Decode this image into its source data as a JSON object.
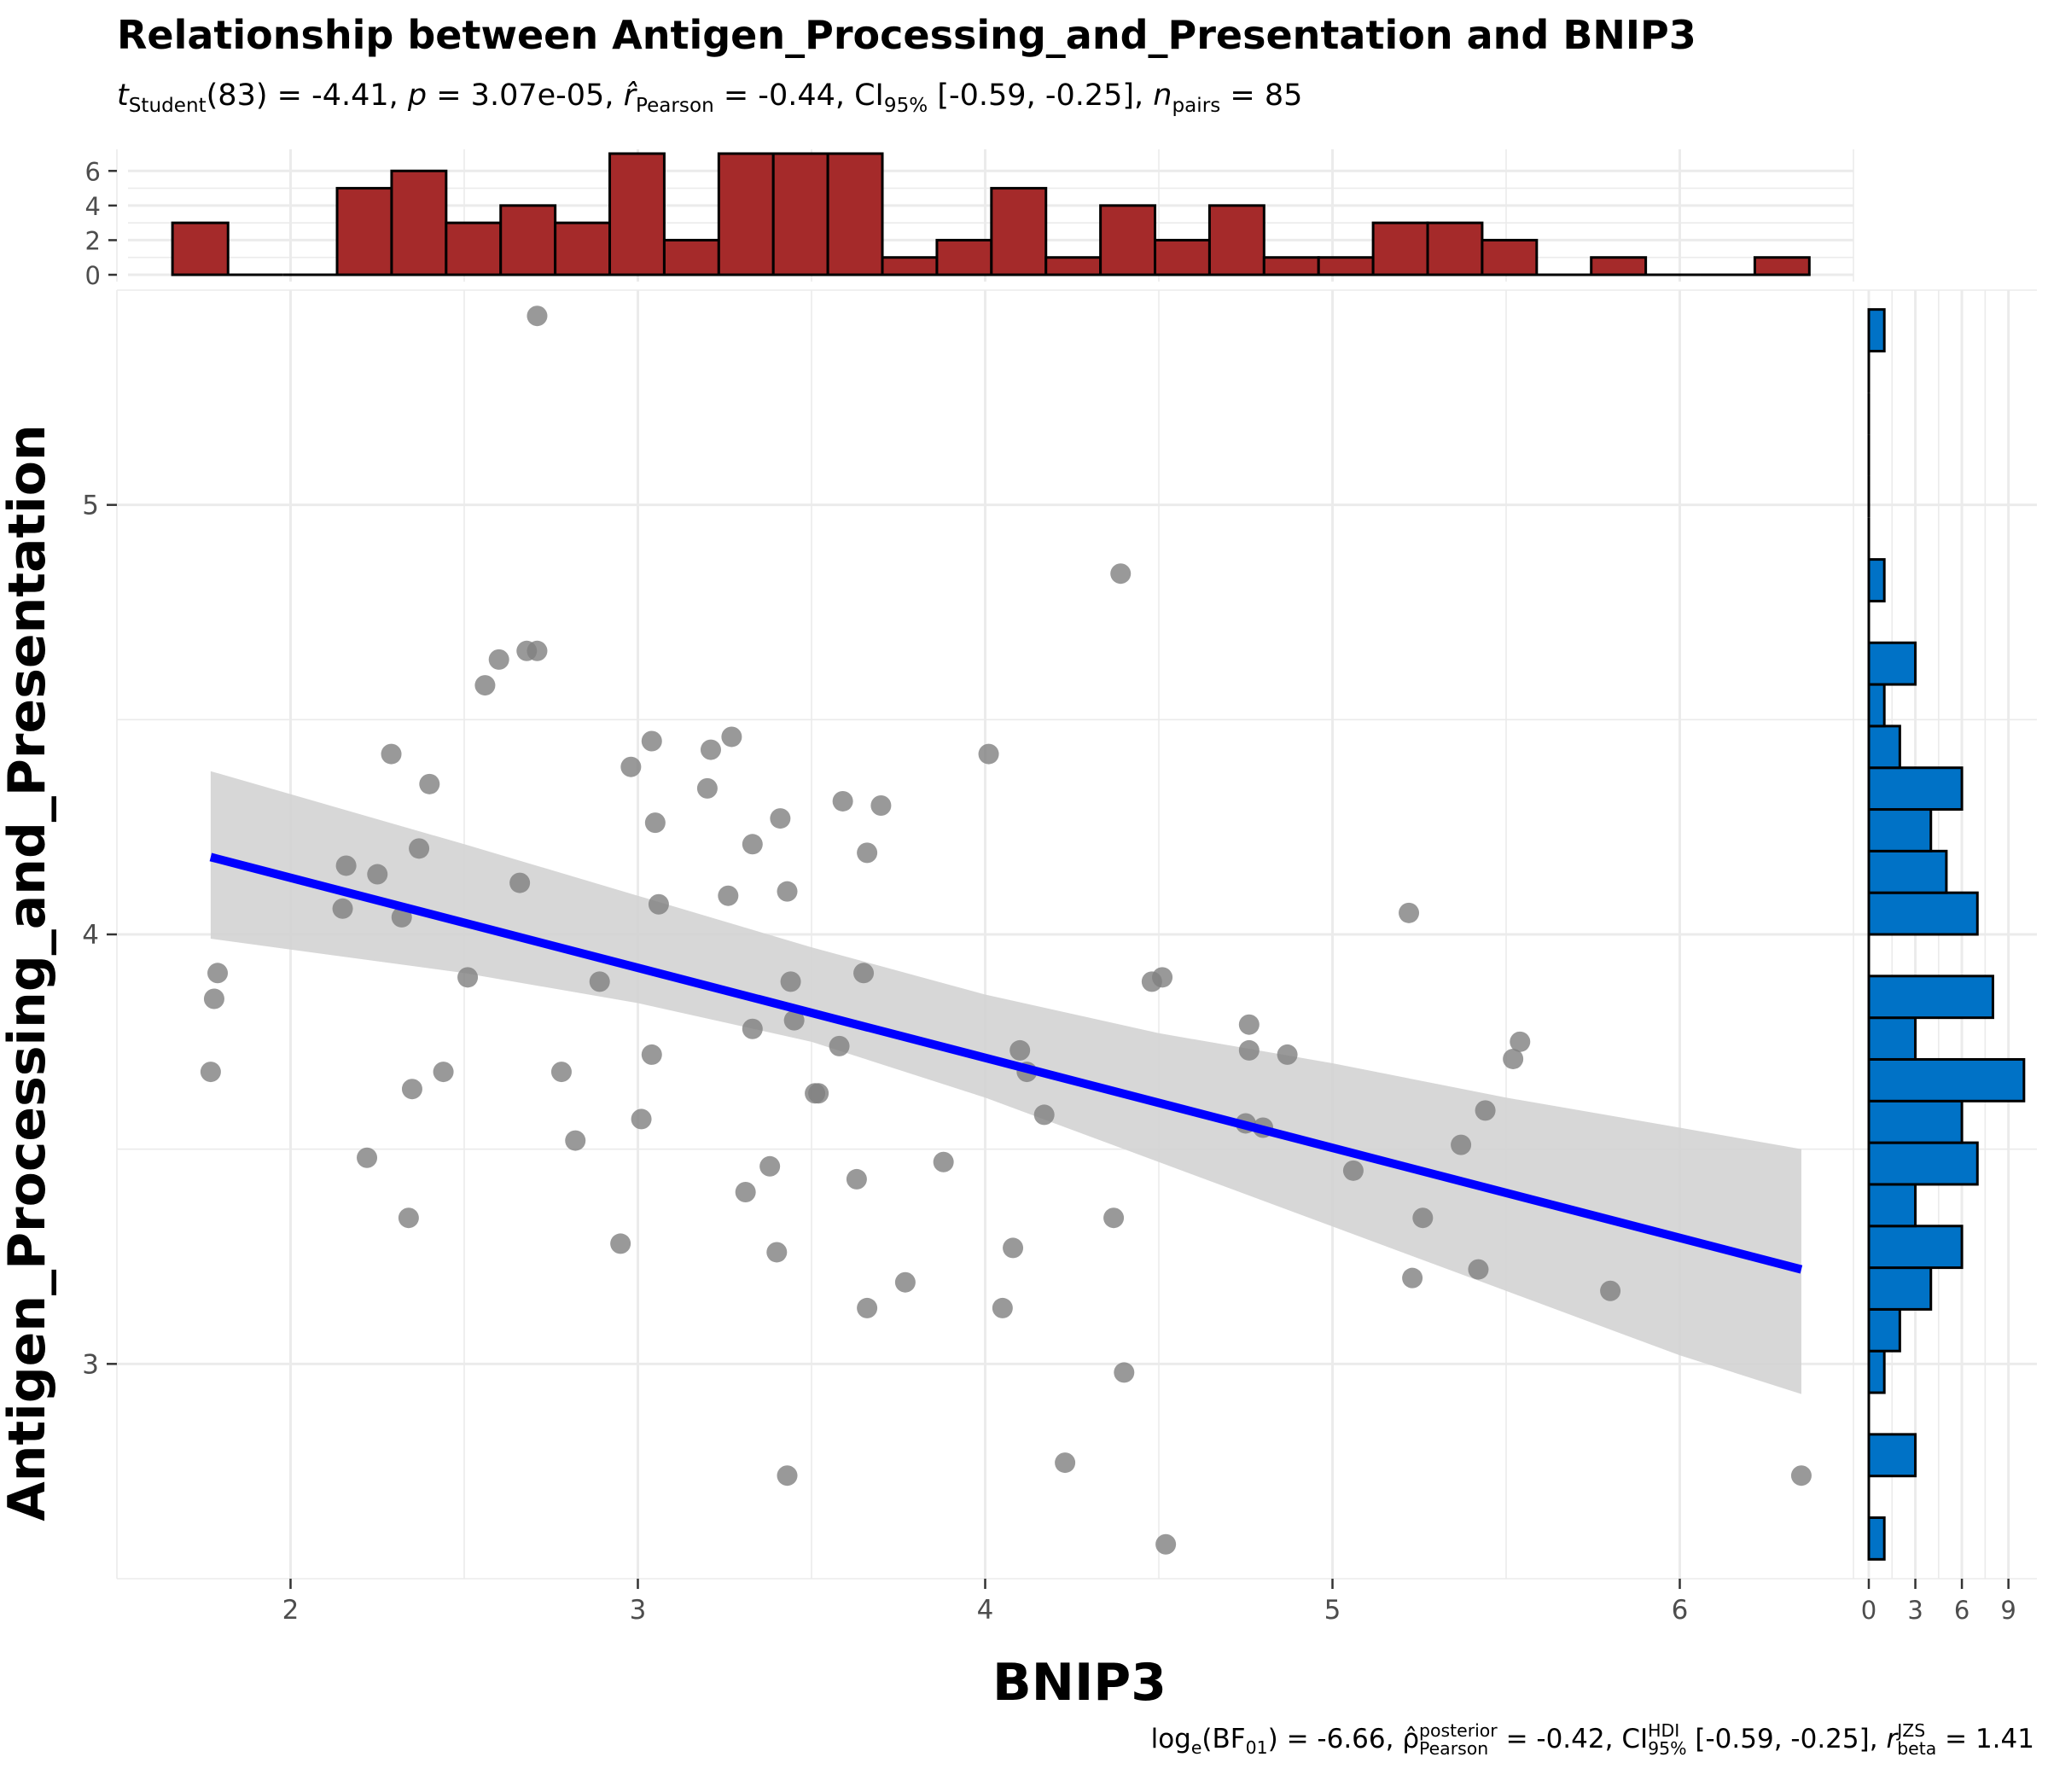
{
  "header": {
    "title": "Relationship between Antigen_Processing_and_Presentation and BNIP3",
    "subtitle": {
      "t_name": "t",
      "t_sub": "Student",
      "t_rest": "(83) = -4.41, ",
      "p_name": "p",
      "p_rest": " = 3.07e-05, ",
      "r_name": "r̂",
      "r_sub": "Pearson",
      "r_rest": " = -0.44, CI",
      "ci_sub": "95%",
      "ci_rest": " [-0.59, -0.25], ",
      "n_name": "n",
      "n_sub": "pairs",
      "n_rest": " = 85"
    },
    "caption": {
      "log_a": "log",
      "log_sub": "e",
      "log_b": "(BF",
      "bf_sub": "01",
      "log_c": ") = -6.66, ρ̂",
      "rho_sup": "posterior",
      "rho_sub": "Pearson",
      "rho_rest": " = -0.42, CI",
      "ci_sup": "HDI",
      "ci_sub": "95%",
      "ci_rest": " [-0.59, -0.25], ",
      "r_name": "r",
      "r_sup": "JZS",
      "r_sub": "beta",
      "r_rest": " = 1.41"
    }
  },
  "chart_data": {
    "type": "scatter",
    "title": "Relationship between Antigen_Processing_and_Presentation and BNIP3",
    "xlabel": "BNIP3",
    "ylabel": "Antigen_Processing_and_Presentation",
    "xlim": [
      1.5,
      6.5
    ],
    "ylim": [
      2.5,
      5.5
    ],
    "x_ticks": [
      2,
      3,
      4,
      5,
      6
    ],
    "y_ticks": [
      3,
      4,
      5
    ],
    "grid": true,
    "colors": {
      "points": "#808080",
      "fit_line": "#0000ff",
      "ci_band": "#d3d3d3",
      "x_hist_fill": "#a52a2a",
      "y_hist_fill": "#0072c6",
      "grid": "#ebebeb"
    },
    "points": [
      [
        1.77,
        3.68
      ],
      [
        1.78,
        3.85
      ],
      [
        1.79,
        3.91
      ],
      [
        2.15,
        4.06
      ],
      [
        2.16,
        4.16
      ],
      [
        2.22,
        3.48
      ],
      [
        2.25,
        4.14
      ],
      [
        2.29,
        4.42
      ],
      [
        2.32,
        4.04
      ],
      [
        2.34,
        3.34
      ],
      [
        2.35,
        3.64
      ],
      [
        2.37,
        4.2
      ],
      [
        2.4,
        4.35
      ],
      [
        2.44,
        3.68
      ],
      [
        2.51,
        3.9
      ],
      [
        2.56,
        4.58
      ],
      [
        2.6,
        4.64
      ],
      [
        2.66,
        4.12
      ],
      [
        2.68,
        4.66
      ],
      [
        2.71,
        4.66
      ],
      [
        2.71,
        5.44
      ],
      [
        2.78,
        3.68
      ],
      [
        2.82,
        3.52
      ],
      [
        2.89,
        3.89
      ],
      [
        2.95,
        3.28
      ],
      [
        2.98,
        4.39
      ],
      [
        3.01,
        3.57
      ],
      [
        3.04,
        4.45
      ],
      [
        3.04,
        3.72
      ],
      [
        3.05,
        4.26
      ],
      [
        3.06,
        4.07
      ],
      [
        3.2,
        4.34
      ],
      [
        3.21,
        4.43
      ],
      [
        3.26,
        4.09
      ],
      [
        3.27,
        4.46
      ],
      [
        3.31,
        3.4
      ],
      [
        3.33,
        4.21
      ],
      [
        3.33,
        3.78
      ],
      [
        3.38,
        3.46
      ],
      [
        3.4,
        3.26
      ],
      [
        3.41,
        4.27
      ],
      [
        3.43,
        2.74
      ],
      [
        3.43,
        4.1
      ],
      [
        3.44,
        3.89
      ],
      [
        3.45,
        3.8
      ],
      [
        3.51,
        3.63
      ],
      [
        3.52,
        3.63
      ],
      [
        3.58,
        3.74
      ],
      [
        3.59,
        4.31
      ],
      [
        3.63,
        3.43
      ],
      [
        3.65,
        3.91
      ],
      [
        3.66,
        4.19
      ],
      [
        3.66,
        3.13
      ],
      [
        3.7,
        4.3
      ],
      [
        3.77,
        3.19
      ],
      [
        3.88,
        3.47
      ],
      [
        4.01,
        4.42
      ],
      [
        4.05,
        3.13
      ],
      [
        4.08,
        3.27
      ],
      [
        4.1,
        3.73
      ],
      [
        4.12,
        3.68
      ],
      [
        4.17,
        3.58
      ],
      [
        4.23,
        2.77
      ],
      [
        4.37,
        3.34
      ],
      [
        4.39,
        4.84
      ],
      [
        4.4,
        2.98
      ],
      [
        4.48,
        3.89
      ],
      [
        4.51,
        3.9
      ],
      [
        4.52,
        2.58
      ],
      [
        4.75,
        3.56
      ],
      [
        4.76,
        3.73
      ],
      [
        4.76,
        3.79
      ],
      [
        4.8,
        3.55
      ],
      [
        4.87,
        3.72
      ],
      [
        5.06,
        3.45
      ],
      [
        5.22,
        4.05
      ],
      [
        5.23,
        3.2
      ],
      [
        5.26,
        3.34
      ],
      [
        5.37,
        3.51
      ],
      [
        5.42,
        3.22
      ],
      [
        5.44,
        3.59
      ],
      [
        5.52,
        3.71
      ],
      [
        5.54,
        3.75
      ],
      [
        5.8,
        3.17
      ],
      [
        6.35,
        2.74
      ]
    ],
    "fit_line": {
      "x": [
        1.77,
        6.35
      ],
      "y": [
        4.18,
        3.22
      ]
    },
    "ci_band": {
      "x": [
        1.77,
        2.5,
        3.0,
        3.5,
        4.0,
        4.5,
        5.0,
        5.5,
        6.0,
        6.35
      ],
      "lower": [
        3.99,
        3.91,
        3.84,
        3.75,
        3.62,
        3.47,
        3.32,
        3.17,
        3.02,
        2.93
      ],
      "upper": [
        4.38,
        4.21,
        4.09,
        3.97,
        3.86,
        3.77,
        3.7,
        3.62,
        3.55,
        3.5
      ]
    },
    "x_histogram": {
      "bin_edges": [
        1.66,
        1.82,
        1.977,
        2.134,
        2.291,
        2.448,
        2.605,
        2.762,
        2.919,
        3.076,
        3.233,
        3.39,
        3.547,
        3.704,
        3.861,
        4.018,
        4.175,
        4.332,
        4.489,
        4.646,
        4.803,
        4.96,
        5.117,
        5.274,
        5.431,
        5.588,
        5.745,
        5.902,
        6.059,
        6.216,
        6.373
      ],
      "counts": [
        3,
        0,
        0,
        5,
        6,
        3,
        4,
        3,
        7,
        2,
        7,
        7,
        7,
        1,
        2,
        5,
        1,
        4,
        2,
        4,
        1,
        1,
        3,
        3,
        2,
        0,
        1,
        0,
        0,
        1
      ],
      "ticks": [
        0,
        2,
        4,
        6
      ]
    },
    "y_histogram": {
      "bin_edges": [
        2.545,
        2.642,
        2.739,
        2.836,
        2.933,
        3.03,
        3.127,
        3.224,
        3.321,
        3.418,
        3.515,
        3.612,
        3.709,
        3.806,
        3.903,
        4.0,
        4.097,
        4.194,
        4.291,
        4.388,
        4.485,
        4.582,
        4.679,
        4.776,
        4.873,
        4.97,
        5.067,
        5.164,
        5.261,
        5.358,
        5.455
      ],
      "counts": [
        1,
        0,
        3,
        0,
        1,
        2,
        4,
        6,
        3,
        7,
        6,
        10,
        3,
        8,
        0,
        7,
        5,
        4,
        6,
        2,
        1,
        3,
        0,
        1,
        0,
        0,
        0,
        0,
        0,
        1
      ],
      "ticks": [
        0,
        3,
        6,
        9
      ]
    }
  }
}
